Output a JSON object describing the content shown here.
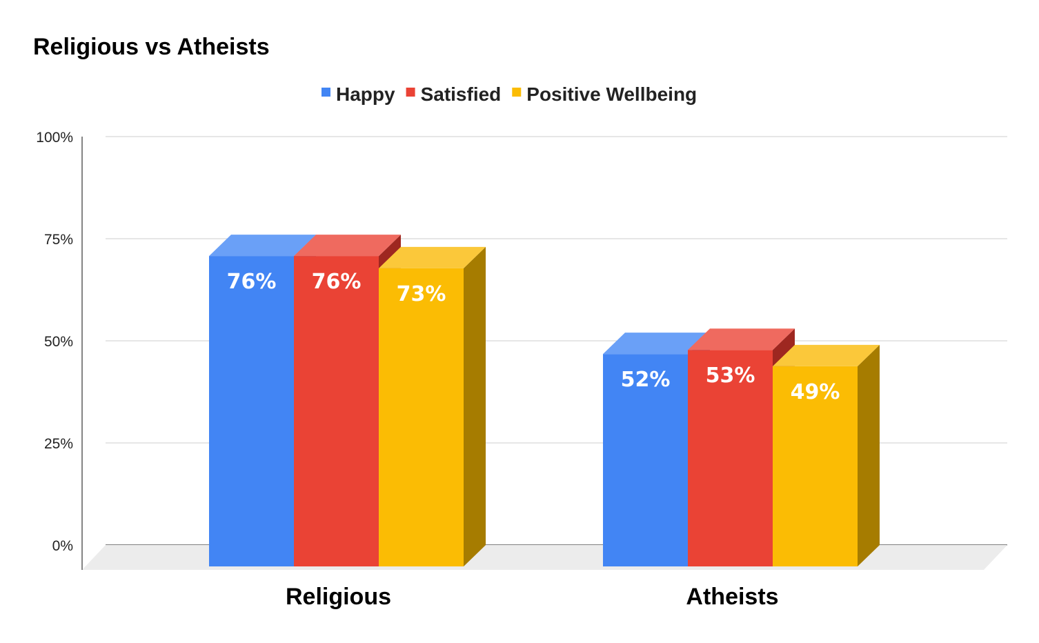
{
  "chart_data": {
    "type": "bar",
    "title": "Religious vs Atheists",
    "categories": [
      "Religious",
      "Atheists"
    ],
    "series": [
      {
        "name": "Happy",
        "values": [
          76,
          52
        ],
        "labels": [
          "76%",
          "52%"
        ],
        "color": "#4285f4",
        "top_color": "#6aa0f7",
        "side_color": "#2a64c8"
      },
      {
        "name": "Satisfied",
        "values": [
          76,
          53
        ],
        "labels": [
          "76%",
          "53%"
        ],
        "color": "#ea4335",
        "top_color": "#ef6a5f",
        "side_color": "#9e2720"
      },
      {
        "name": "Positive Wellbeing",
        "values": [
          73,
          49
        ],
        "labels": [
          "73%",
          "49%"
        ],
        "color": "#fbbc04",
        "top_color": "#fbc83a",
        "side_color": "#a67c00"
      }
    ],
    "yaxis": {
      "ticks": [
        0,
        25,
        50,
        75,
        100
      ],
      "tick_labels": [
        "0%",
        "25%",
        "50%",
        "75%",
        "100%"
      ],
      "ylim": [
        0,
        100
      ]
    },
    "xlabel": "",
    "ylabel": "",
    "grid": true,
    "legend": "top-center"
  }
}
